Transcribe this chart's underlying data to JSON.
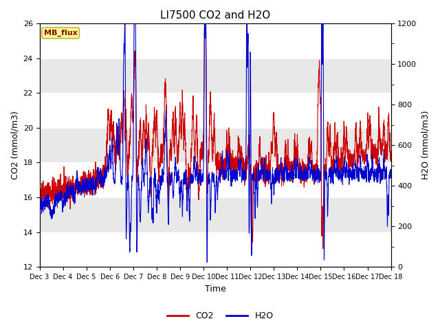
{
  "title": "LI7500 CO2 and H2O",
  "xlabel": "Time",
  "ylabel_left": "CO2 (mmol/m3)",
  "ylabel_right": "H2O (mmol/m3)",
  "ylim_left": [
    12,
    26
  ],
  "ylim_right": [
    0,
    1200
  ],
  "yticks_left": [
    12,
    14,
    16,
    18,
    20,
    22,
    24,
    26
  ],
  "yticks_right": [
    0,
    200,
    400,
    600,
    800,
    1000,
    1200
  ],
  "x_start": 3.0,
  "x_end": 18.0,
  "co2_color": "#cc0000",
  "h2o_color": "#0000cc",
  "legend_co2": "CO2",
  "legend_h2o": "H2O",
  "mb_flux_label": "MB_flux",
  "mb_flux_bg": "#ffff99",
  "mb_flux_border": "#bbaa00",
  "mb_flux_text_color": "#880000",
  "band_colors": [
    "#ffffff",
    "#e8e8e8"
  ],
  "title_fontsize": 11,
  "axis_fontsize": 9,
  "tick_fontsize": 8,
  "seed": 42,
  "n_points": 3000,
  "xtick_positions": [
    3,
    4,
    5,
    6,
    7,
    8,
    9,
    10,
    11,
    12,
    13,
    14,
    15,
    16,
    17,
    18
  ],
  "xtick_labels": [
    "Dec 3",
    "Dec 4",
    "Dec 5",
    "Dec 6",
    "Dec 7",
    "Dec 8",
    "Dec 9",
    "Dec 10",
    "Dec 11",
    "Dec 12",
    "Dec 13",
    "Dec 14",
    "Dec 15",
    "Dec 16",
    "Dec 17",
    "Dec 18"
  ]
}
